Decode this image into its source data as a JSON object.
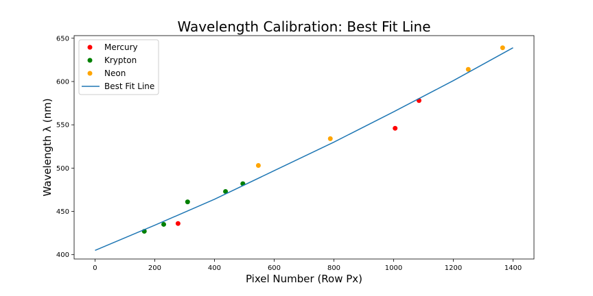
{
  "chart_data": {
    "type": "scatter",
    "title": "Wavelength Calibration: Best Fit Line",
    "xlabel": "Pixel Number (Row Px)",
    "ylabel": "Wavelength λ (nm)",
    "xlim": [
      -70,
      1470
    ],
    "ylim": [
      395,
      653
    ],
    "xticks": [
      0,
      200,
      400,
      600,
      800,
      1000,
      1200,
      1400
    ],
    "yticks": [
      400,
      450,
      500,
      550,
      600,
      650
    ],
    "grid": false,
    "legend_position": "upper-left",
    "series": [
      {
        "name": "Mercury",
        "kind": "scatter",
        "color": "#ff0000",
        "points": [
          [
            278,
            436
          ],
          [
            1005,
            546
          ],
          [
            1085,
            578
          ]
        ]
      },
      {
        "name": "Krypton",
        "kind": "scatter",
        "color": "#008000",
        "points": [
          [
            165,
            427
          ],
          [
            230,
            435
          ],
          [
            310,
            461
          ],
          [
            437,
            473
          ],
          [
            495,
            482
          ]
        ]
      },
      {
        "name": "Neon",
        "kind": "scatter",
        "color": "#ffa500",
        "points": [
          [
            547,
            503
          ],
          [
            788,
            534
          ],
          [
            1250,
            614
          ],
          [
            1365,
            639
          ]
        ]
      },
      {
        "name": "Best Fit Line",
        "kind": "line",
        "color": "#1f77b4",
        "x": [
          0,
          200,
          400,
          600,
          800,
          1000,
          1200,
          1400
        ],
        "y": [
          405,
          434,
          464,
          497,
          530,
          565,
          601,
          639
        ]
      }
    ]
  }
}
